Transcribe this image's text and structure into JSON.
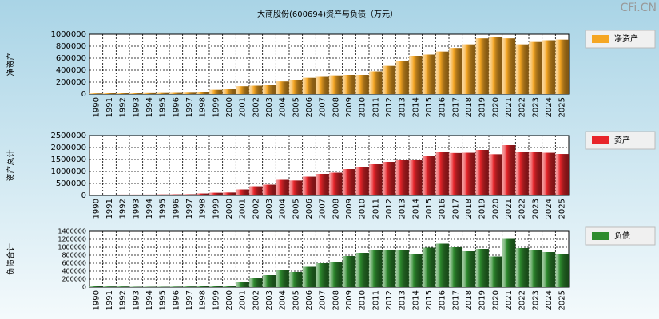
{
  "title": "大商股份(600694)资产与负债（万元）",
  "watermark": "CFi.CN",
  "chart_data": [
    {
      "type": "bar",
      "ylabel": "净资产",
      "grid": true,
      "categories": [
        "1990",
        "1991",
        "1992",
        "1993",
        "1994",
        "1995",
        "1996",
        "1997",
        "1998",
        "1999",
        "2000",
        "2001",
        "2002",
        "2003",
        "2004",
        "2005",
        "2006",
        "2007",
        "2008",
        "2009",
        "2010",
        "2011",
        "2012",
        "2013",
        "2014",
        "2015",
        "2016",
        "2017",
        "2018",
        "2019",
        "2020",
        "2021",
        "2022",
        "2023",
        "2024",
        "2025"
      ],
      "series": [
        {
          "name": "净资产",
          "color": "#f5a623",
          "values": [
            10000,
            15000,
            20000,
            25000,
            28000,
            30000,
            32000,
            35000,
            40000,
            70000,
            80000,
            130000,
            140000,
            150000,
            210000,
            240000,
            270000,
            300000,
            310000,
            320000,
            320000,
            380000,
            470000,
            550000,
            640000,
            660000,
            710000,
            770000,
            830000,
            930000,
            950000,
            930000,
            830000,
            870000,
            900000,
            910000
          ]
        }
      ],
      "ylim": [
        0,
        1000000
      ],
      "yticks": [
        0,
        200000,
        400000,
        600000,
        800000,
        1000000
      ]
    },
    {
      "type": "bar",
      "ylabel": "资产总计",
      "grid": true,
      "categories": [
        "1990",
        "1991",
        "1992",
        "1993",
        "1994",
        "1995",
        "1996",
        "1997",
        "1998",
        "1999",
        "2000",
        "2001",
        "2002",
        "2003",
        "2004",
        "2005",
        "2006",
        "2007",
        "2008",
        "2009",
        "2010",
        "2011",
        "2012",
        "2013",
        "2014",
        "2015",
        "2016",
        "2017",
        "2018",
        "2019",
        "2020",
        "2021",
        "2022",
        "2023",
        "2024",
        "2025"
      ],
      "series": [
        {
          "name": "资产",
          "color": "#e8252a",
          "values": [
            30000,
            30000,
            35000,
            35000,
            35000,
            40000,
            45000,
            50000,
            80000,
            110000,
            120000,
            250000,
            380000,
            450000,
            650000,
            620000,
            780000,
            900000,
            950000,
            1100000,
            1180000,
            1300000,
            1400000,
            1500000,
            1480000,
            1650000,
            1800000,
            1770000,
            1780000,
            1900000,
            1720000,
            2100000,
            1800000,
            1800000,
            1780000,
            1730000
          ]
        }
      ],
      "ylim": [
        0,
        2500000
      ],
      "yticks": [
        0,
        500000,
        1000000,
        1500000,
        2000000,
        2500000
      ]
    },
    {
      "type": "bar",
      "ylabel": "负债合计",
      "grid": true,
      "categories": [
        "1990",
        "1991",
        "1992",
        "1993",
        "1994",
        "1995",
        "1996",
        "1997",
        "1998",
        "1999",
        "2000",
        "2001",
        "2002",
        "2003",
        "2004",
        "2005",
        "2006",
        "2007",
        "2008",
        "2009",
        "2010",
        "2011",
        "2012",
        "2013",
        "2014",
        "2015",
        "2016",
        "2017",
        "2018",
        "2019",
        "2020",
        "2021",
        "2022",
        "2023",
        "2024",
        "2025"
      ],
      "series": [
        {
          "name": "负债",
          "color": "#2e8b2e",
          "values": [
            20000,
            15000,
            15000,
            10000,
            10000,
            10000,
            12000,
            15000,
            40000,
            40000,
            40000,
            120000,
            240000,
            300000,
            440000,
            380000,
            510000,
            600000,
            640000,
            780000,
            860000,
            920000,
            940000,
            940000,
            840000,
            990000,
            1090000,
            1000000,
            900000,
            960000,
            770000,
            1210000,
            980000,
            930000,
            880000,
            820000
          ]
        }
      ],
      "ylim": [
        0,
        1400000
      ],
      "yticks": [
        0,
        200000,
        400000,
        600000,
        800000,
        1000000,
        1200000,
        1400000
      ]
    }
  ]
}
